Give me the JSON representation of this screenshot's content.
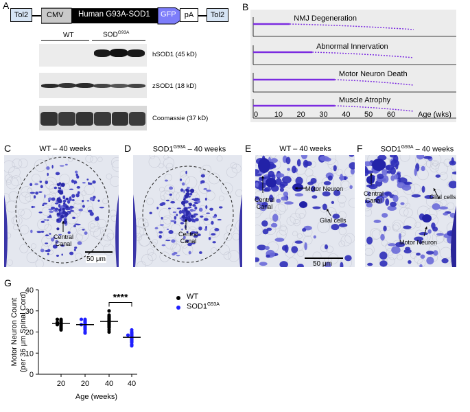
{
  "panels": {
    "A": "A",
    "B": "B",
    "C": "C",
    "D": "D",
    "E": "E",
    "F": "F",
    "G": "G"
  },
  "construct": {
    "tol2_left": "Tol2",
    "cmv": "CMV",
    "gene": "Human G93A-SOD1",
    "gfp": "GFP",
    "pa": "pA",
    "tol2_right": "Tol2"
  },
  "blot": {
    "wt_label": "WT",
    "sod_label": "SOD",
    "sod_sup": "G93A",
    "rows": [
      {
        "label": "hSOD1 (45 kD)"
      },
      {
        "label": "zSOD1 (18 kD)"
      },
      {
        "label": "Coomassie (37 kD)"
      }
    ]
  },
  "timeline": {
    "rows": [
      "NMJ Degeneration",
      "Abnormal Innervation",
      "Motor Neuron Death",
      "Muscle Atrophy"
    ],
    "onset_weeks": [
      15,
      25,
      35,
      35
    ],
    "end_weeks": [
      70,
      70,
      70,
      70
    ],
    "ticks": [
      "0",
      "10",
      "20",
      "30",
      "40",
      "50",
      "60"
    ],
    "tick_values": [
      0,
      10,
      20,
      30,
      40,
      50,
      60
    ],
    "axis_label": "Age (wks)",
    "line_color": "#7b2be0"
  },
  "micro": {
    "c_title": "WT – 40 weeks",
    "d_title_a": "SOD1",
    "d_title_sup": "G93A",
    "d_title_b": " – 40 weeks",
    "e_title": "WT – 40 weeks",
    "f_title_a": "SOD1",
    "f_title_sup": "G93A",
    "f_title_b": " – 40 weeks",
    "central_canal_1": "Central",
    "central_canal_2": "Canal",
    "scale_c": "50 μm",
    "scale_e": "50 μm",
    "motor_neuron": "Motor Neuron",
    "glial_cells": "Glial cells"
  },
  "chart_data": {
    "type": "scatter",
    "ylabel_line1": "Motor Neuron Count",
    "ylabel_line2": "(per 36 μm Spinal Cord)",
    "xlabel": "Age (weeks)",
    "ylim": [
      0,
      40
    ],
    "yticks": [
      "0",
      "10",
      "20",
      "30",
      "40"
    ],
    "categories": [
      "20",
      "20",
      "40",
      "40"
    ],
    "significance": "****",
    "legend": [
      {
        "name": "WT",
        "color": "#000000"
      },
      {
        "name": "SOD1",
        "sup": "G93A",
        "color": "#1f1fff"
      }
    ],
    "groups": [
      {
        "series": "WT",
        "age": 20,
        "color": "#000000",
        "mean": 24,
        "values": [
          26,
          26,
          25.5,
          25,
          24.5,
          24.5,
          24,
          24,
          23.5,
          23.5,
          23,
          22.5,
          22,
          21.5,
          21
        ]
      },
      {
        "series": "SOD1 G93A",
        "age": 20,
        "color": "#1f1fff",
        "mean": 23.5,
        "values": [
          26,
          26,
          25.5,
          25,
          24.5,
          24,
          23.5,
          23.5,
          23,
          22.5,
          22,
          21.5,
          21,
          20,
          19.5
        ]
      },
      {
        "series": "WT",
        "age": 40,
        "color": "#000000",
        "mean": 25,
        "values": [
          30,
          28,
          27.5,
          27,
          26.5,
          26,
          25.5,
          25,
          24.5,
          24,
          23.5,
          23,
          22.5,
          22,
          21,
          20
        ]
      },
      {
        "series": "SOD1 G93A",
        "age": 40,
        "color": "#1f1fff",
        "mean": 17.5,
        "values": [
          21,
          20,
          19.5,
          19,
          18.5,
          18.5,
          18,
          17.5,
          17,
          16.5,
          16,
          15.5,
          15,
          14,
          13.5
        ]
      }
    ]
  }
}
